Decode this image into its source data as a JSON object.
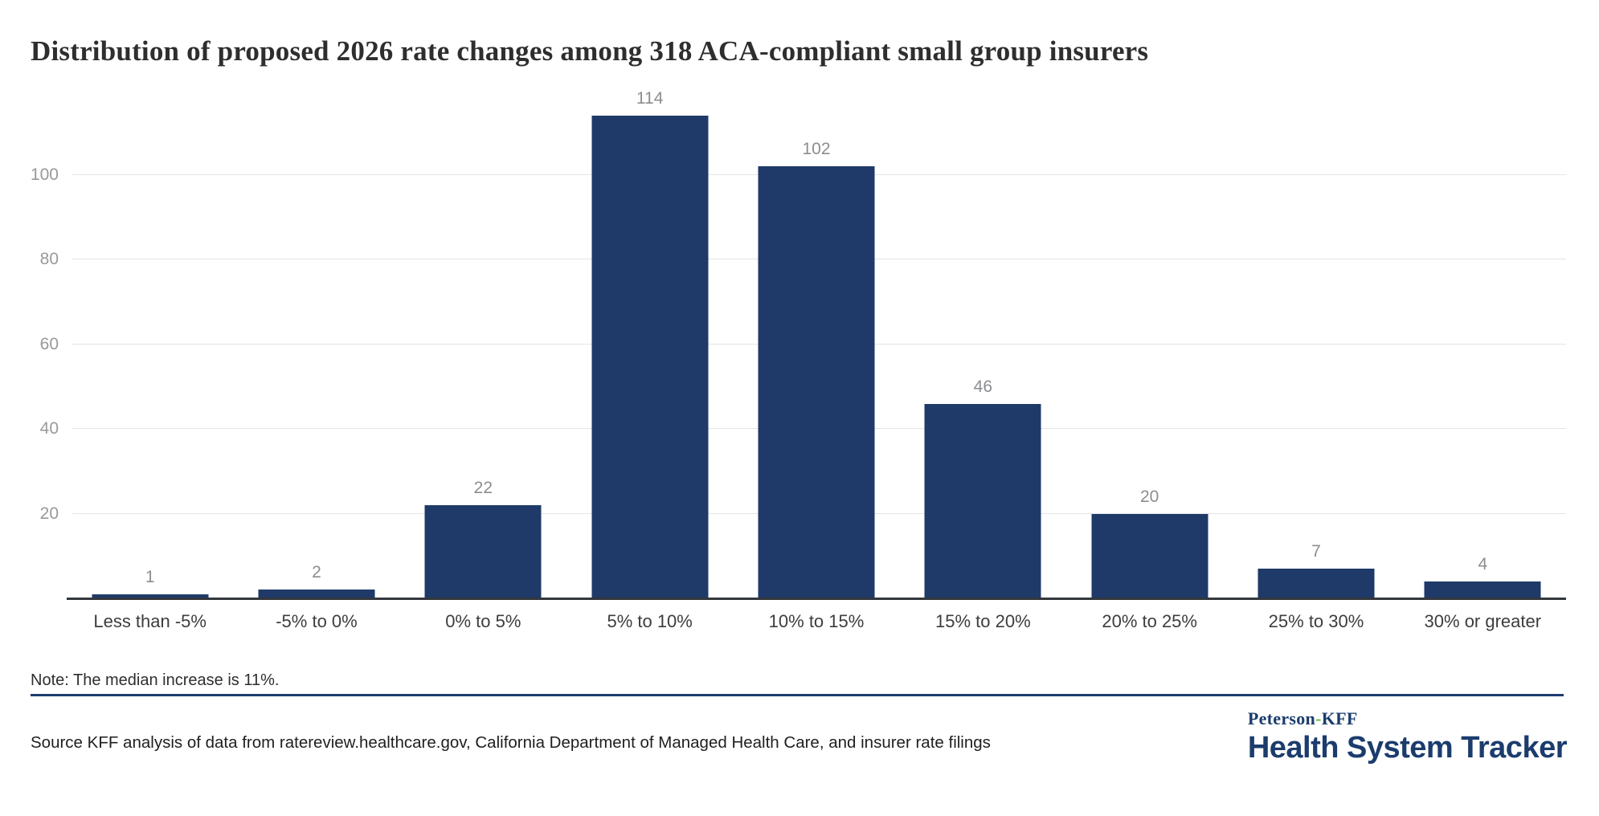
{
  "title": "Distribution of proposed 2026 rate changes among 318 ACA-compliant small group insurers",
  "note": "Note: The median increase is 11%.",
  "source": "Source KFF analysis of data from ratereview.healthcare.gov, California Department of Managed Health Care, and insurer rate filings",
  "logo": {
    "peterson": "Peterson",
    "hyphen": "-",
    "kff": "KFF",
    "bottom": "Health System Tracker"
  },
  "colors": {
    "bar": "#1f3a69",
    "brand_navy": "#1b3c6d",
    "brand_green": "#61bb46",
    "gridline": "#e4e4e4",
    "axis_line": "#33373c",
    "value_label": "#8b8d8f",
    "y_tick_label": "#97999b",
    "category_label": "#3d3d3d"
  },
  "chart_data": {
    "type": "bar",
    "title": "Distribution of proposed 2026 rate changes among 318 ACA-compliant small group insurers",
    "categories": [
      "Less than -5%",
      "-5% to 0%",
      "0% to 5%",
      "5% to 10%",
      "10% to 15%",
      "15% to 20%",
      "20% to 25%",
      "25% to 30%",
      "30% or greater"
    ],
    "values": [
      1,
      2,
      22,
      114,
      102,
      46,
      20,
      7,
      4
    ],
    "xlabel": "",
    "ylabel": "",
    "ylim": [
      0,
      122
    ],
    "yticks": [
      20,
      40,
      60,
      80,
      100
    ],
    "grid": true,
    "legend": false,
    "bar_labels_shown": true,
    "note": "The median increase is 11%",
    "total_insurers": 318
  }
}
